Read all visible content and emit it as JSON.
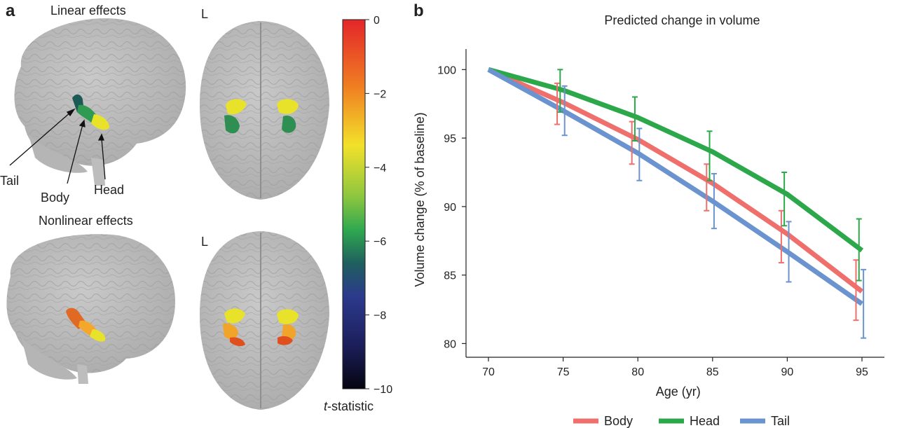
{
  "panel_a": {
    "letter": "a",
    "linear_title": "Linear effects",
    "nonlinear_title": "Nonlinear effects",
    "hemisphere_label_top": "L",
    "hemisphere_label_bottom": "L",
    "annotations": {
      "tail": "Tail",
      "body": "Body",
      "head": "Head"
    },
    "colorbar": {
      "label_italic": "t",
      "label_rest": "-statistic",
      "ticks": [
        "0",
        "−2",
        "−4",
        "−6",
        "−8",
        "−10"
      ]
    }
  },
  "panel_b": {
    "letter": "b"
  },
  "chart_data": {
    "type": "line",
    "title": "Predicted change in volume",
    "xlabel": "Age (yr)",
    "ylabel": "Volume change (% of baseline)",
    "xlim": [
      68.5,
      96.5
    ],
    "ylim": [
      79,
      101.5
    ],
    "xticks": [
      70,
      75,
      80,
      85,
      90,
      95
    ],
    "yticks": [
      80,
      85,
      90,
      95,
      100
    ],
    "legend_position": "bottom",
    "series": [
      {
        "name": "Body",
        "color": "#ef6f6c",
        "x": [
          70,
          75,
          80,
          85,
          90,
          95
        ],
        "y": [
          100,
          97.6,
          94.9,
          91.7,
          88.0,
          83.8
        ],
        "errors": [
          {
            "x": 74.6,
            "low": 96.0,
            "high": 99.0
          },
          {
            "x": 79.6,
            "low": 93.1,
            "high": 96.2
          },
          {
            "x": 84.6,
            "low": 89.7,
            "high": 93.1
          },
          {
            "x": 89.6,
            "low": 85.9,
            "high": 89.7
          },
          {
            "x": 94.6,
            "low": 81.7,
            "high": 86.1
          }
        ]
      },
      {
        "name": "Head",
        "color": "#2ca84a",
        "x": [
          70,
          75,
          80,
          85,
          90,
          95
        ],
        "y": [
          100,
          98.5,
          96.5,
          94.0,
          90.9,
          86.8
        ],
        "errors": [
          {
            "x": 74.8,
            "low": 96.9,
            "high": 100.0
          },
          {
            "x": 79.8,
            "low": 94.8,
            "high": 98.0
          },
          {
            "x": 84.8,
            "low": 91.9,
            "high": 95.5
          },
          {
            "x": 89.8,
            "low": 88.6,
            "high": 92.5
          },
          {
            "x": 94.8,
            "low": 84.6,
            "high": 89.1
          }
        ]
      },
      {
        "name": "Tail",
        "color": "#6a93cf",
        "x": [
          70,
          75,
          80,
          85,
          90,
          95
        ],
        "y": [
          100,
          97.0,
          93.9,
          90.4,
          86.7,
          82.9
        ],
        "errors": [
          {
            "x": 75.1,
            "low": 95.2,
            "high": 98.8
          },
          {
            "x": 80.1,
            "low": 91.9,
            "high": 95.7
          },
          {
            "x": 85.1,
            "low": 88.4,
            "high": 92.4
          },
          {
            "x": 90.1,
            "low": 84.5,
            "high": 88.9
          },
          {
            "x": 95.1,
            "low": 80.4,
            "high": 85.4
          }
        ]
      }
    ]
  }
}
